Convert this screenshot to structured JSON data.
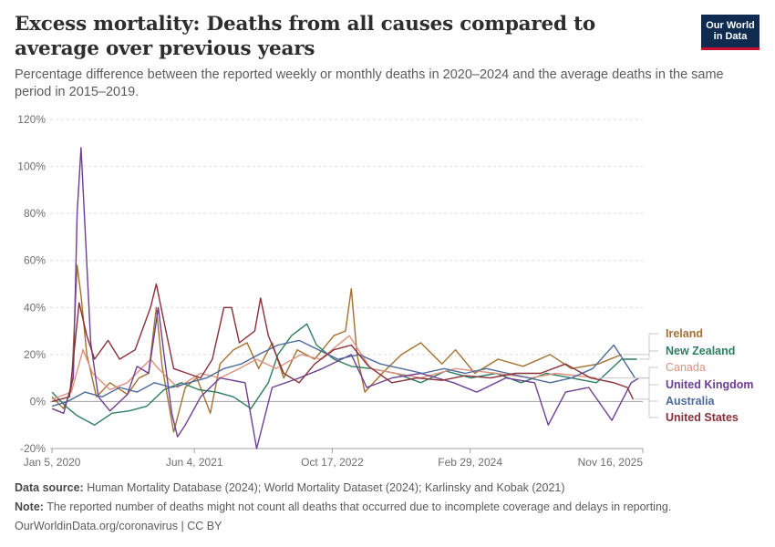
{
  "header": {
    "title": "Excess mortality: Deaths from all causes compared to average over previous years",
    "subtitle": "Percentage difference between the reported weekly or monthly deaths in 2020–2024 and the average deaths in the same period in 2015–2019.",
    "logo_line1": "Our World",
    "logo_line2": "in Data"
  },
  "footer": {
    "source_label": "Data source:",
    "source_text": "Human Mortality Database (2024); World Mortality Dataset (2024); Karlinsky and Kobak (2021)",
    "note_label": "Note:",
    "note_text": "The reported number of deaths might not count all deaths that occurred due to incomplete coverage and delays in reporting.",
    "credit": "OurWorldinData.org/coronavirus | CC BY"
  },
  "chart_data": {
    "type": "line",
    "y_unit": "%",
    "ylim": [
      -20,
      120
    ],
    "y_ticks": [
      -20,
      0,
      20,
      40,
      60,
      80,
      100,
      120
    ],
    "y_tick_labels": [
      "-20%",
      "0%",
      "20%",
      "40%",
      "60%",
      "80%",
      "100%",
      "120%"
    ],
    "x_ticks": [
      "2020-01-05",
      "2021-06-04",
      "2022-10-17",
      "2024-02-29",
      "2025-11-16"
    ],
    "x_tick_labels": [
      "Jan 5, 2020",
      "Jun 4, 2021",
      "Oct 17, 2022",
      "Feb 29, 2024",
      "Nov 16, 2025"
    ],
    "xlim": [
      "2019-12-29",
      "2025-11-16"
    ],
    "grid": "horizontal dashed",
    "legend": "right, labels at line ends",
    "series": [
      {
        "name": "Ireland",
        "color": "#a2712f",
        "points": [
          [
            "2020-01-05",
            2
          ],
          [
            "2020-02-15",
            -3
          ],
          [
            "2020-03-15",
            5
          ],
          [
            "2020-04-05",
            58
          ],
          [
            "2020-04-19",
            45
          ],
          [
            "2020-05-10",
            20
          ],
          [
            "2020-06-14",
            2
          ],
          [
            "2020-08-02",
            8
          ],
          [
            "2020-10-04",
            3
          ],
          [
            "2020-11-15",
            10
          ],
          [
            "2020-12-20",
            12
          ],
          [
            "2021-01-17",
            40
          ],
          [
            "2021-02-07",
            15
          ],
          [
            "2021-03-21",
            -13
          ],
          [
            "2021-05-02",
            6
          ],
          [
            "2021-06-13",
            10
          ],
          [
            "2021-08-01",
            -5
          ],
          [
            "2021-09-05",
            16
          ],
          [
            "2021-10-24",
            22
          ],
          [
            "2021-12-12",
            25
          ],
          [
            "2022-01-23",
            14
          ],
          [
            "2022-03-13",
            25
          ],
          [
            "2022-04-24",
            10
          ],
          [
            "2022-06-12",
            22
          ],
          [
            "2022-08-14",
            18
          ],
          [
            "2022-10-23",
            28
          ],
          [
            "2022-12-04",
            30
          ],
          [
            "2022-12-25",
            48
          ],
          [
            "2023-01-15",
            20
          ],
          [
            "2023-02-12",
            4
          ],
          [
            "2023-04-16",
            12
          ],
          [
            "2023-06-25",
            20
          ],
          [
            "2023-09-03",
            25
          ],
          [
            "2023-11-19",
            16
          ],
          [
            "2024-01-07",
            22
          ],
          [
            "2024-03-17",
            12
          ],
          [
            "2024-06-09",
            18
          ],
          [
            "2024-09-08",
            15
          ],
          [
            "2024-12-15",
            20
          ],
          [
            "2025-03-02",
            14
          ],
          [
            "2025-06-08",
            16
          ],
          [
            "2025-08-31",
            20
          ]
        ]
      },
      {
        "name": "New Zealand",
        "color": "#2d7e5e",
        "points": [
          [
            "2020-01-05",
            4
          ],
          [
            "2020-02-23",
            -2
          ],
          [
            "2020-04-05",
            -6
          ],
          [
            "2020-06-07",
            -10
          ],
          [
            "2020-08-09",
            -5
          ],
          [
            "2020-10-11",
            -4
          ],
          [
            "2020-12-13",
            -2
          ],
          [
            "2021-02-14",
            5
          ],
          [
            "2021-04-18",
            8
          ],
          [
            "2021-06-20",
            5
          ],
          [
            "2021-08-22",
            4
          ],
          [
            "2021-10-24",
            2
          ],
          [
            "2021-12-26",
            -3
          ],
          [
            "2022-02-27",
            8
          ],
          [
            "2022-04-03",
            20
          ],
          [
            "2022-05-22",
            28
          ],
          [
            "2022-07-17",
            33
          ],
          [
            "2022-08-21",
            24
          ],
          [
            "2022-10-23",
            18
          ],
          [
            "2022-12-25",
            15
          ],
          [
            "2023-03-05",
            14
          ],
          [
            "2023-06-04",
            12
          ],
          [
            "2023-09-03",
            8
          ],
          [
            "2023-12-03",
            13
          ],
          [
            "2024-03-03",
            10
          ],
          [
            "2024-06-02",
            12
          ],
          [
            "2024-09-01",
            8
          ],
          [
            "2024-12-01",
            12
          ],
          [
            "2025-03-02",
            10
          ],
          [
            "2025-06-01",
            8
          ],
          [
            "2025-08-31",
            18
          ],
          [
            "2025-10-26",
            18
          ]
        ]
      },
      {
        "name": "Canada",
        "color": "#e0917f",
        "points": [
          [
            "2020-01-05",
            1
          ],
          [
            "2020-03-15",
            4
          ],
          [
            "2020-04-26",
            22
          ],
          [
            "2020-05-31",
            12
          ],
          [
            "2020-08-02",
            5
          ],
          [
            "2020-10-04",
            8
          ],
          [
            "2020-12-27",
            18
          ],
          [
            "2021-01-24",
            14
          ],
          [
            "2021-04-04",
            6
          ],
          [
            "2021-06-27",
            12
          ],
          [
            "2021-09-05",
            10
          ],
          [
            "2021-11-14",
            14
          ],
          [
            "2022-01-16",
            18
          ],
          [
            "2022-03-27",
            14
          ],
          [
            "2022-06-26",
            20
          ],
          [
            "2022-09-04",
            18
          ],
          [
            "2022-12-18",
            28
          ],
          [
            "2023-03-05",
            14
          ],
          [
            "2023-06-04",
            12
          ],
          [
            "2023-09-03",
            10
          ],
          [
            "2024-01-07",
            14
          ],
          [
            "2024-06-02",
            12
          ],
          [
            "2024-10-06",
            10
          ],
          [
            "2025-01-05",
            12
          ],
          [
            "2025-06-01",
            10
          ]
        ]
      },
      {
        "name": "United Kingdom",
        "color": "#6d3e91",
        "points": [
          [
            "2020-01-05",
            -3
          ],
          [
            "2020-02-16",
            -5
          ],
          [
            "2020-03-22",
            10
          ],
          [
            "2020-04-05",
            80
          ],
          [
            "2020-04-19",
            108
          ],
          [
            "2020-05-03",
            75
          ],
          [
            "2020-05-24",
            25
          ],
          [
            "2020-06-21",
            2
          ],
          [
            "2020-08-02",
            -4
          ],
          [
            "2020-10-04",
            3
          ],
          [
            "2020-11-08",
            15
          ],
          [
            "2020-12-20",
            12
          ],
          [
            "2021-01-24",
            40
          ],
          [
            "2021-02-14",
            20
          ],
          [
            "2021-03-14",
            -5
          ],
          [
            "2021-04-04",
            -15
          ],
          [
            "2021-05-02",
            -10
          ],
          [
            "2021-06-27",
            2
          ],
          [
            "2021-09-05",
            10
          ],
          [
            "2021-12-05",
            8
          ],
          [
            "2022-01-16",
            -20
          ],
          [
            "2022-03-13",
            6
          ],
          [
            "2022-06-19",
            10
          ],
          [
            "2022-09-11",
            14
          ],
          [
            "2022-12-25",
            20
          ],
          [
            "2023-02-19",
            6
          ],
          [
            "2023-05-21",
            10
          ],
          [
            "2023-09-03",
            12
          ],
          [
            "2023-12-31",
            8
          ],
          [
            "2024-03-24",
            4
          ],
          [
            "2024-07-07",
            10
          ],
          [
            "2024-10-20",
            8
          ],
          [
            "2024-12-08",
            -10
          ],
          [
            "2025-02-09",
            4
          ],
          [
            "2025-05-04",
            6
          ],
          [
            "2025-07-27",
            -8
          ],
          [
            "2025-10-05",
            8
          ],
          [
            "2025-11-02",
            10
          ]
        ]
      },
      {
        "name": "Australia",
        "color": "#4c6a9c",
        "points": [
          [
            "2020-01-05",
            -2
          ],
          [
            "2020-03-01",
            0
          ],
          [
            "2020-05-03",
            4
          ],
          [
            "2020-07-05",
            2
          ],
          [
            "2020-09-06",
            6
          ],
          [
            "2020-11-08",
            4
          ],
          [
            "2021-01-10",
            8
          ],
          [
            "2021-03-14",
            6
          ],
          [
            "2021-05-16",
            8
          ],
          [
            "2021-07-18",
            10
          ],
          [
            "2021-09-19",
            14
          ],
          [
            "2021-11-21",
            16
          ],
          [
            "2022-01-23",
            20
          ],
          [
            "2022-04-03",
            24
          ],
          [
            "2022-06-19",
            26
          ],
          [
            "2022-08-28",
            22
          ],
          [
            "2022-11-06",
            18
          ],
          [
            "2023-01-22",
            20
          ],
          [
            "2023-04-09",
            16
          ],
          [
            "2023-06-25",
            14
          ],
          [
            "2023-09-10",
            12
          ],
          [
            "2023-11-26",
            14
          ],
          [
            "2024-02-11",
            12
          ],
          [
            "2024-04-28",
            14
          ],
          [
            "2024-07-14",
            12
          ],
          [
            "2024-09-29",
            10
          ],
          [
            "2024-12-15",
            8
          ],
          [
            "2025-03-02",
            10
          ],
          [
            "2025-05-18",
            14
          ],
          [
            "2025-08-03",
            24
          ],
          [
            "2025-10-19",
            10
          ]
        ]
      },
      {
        "name": "United States",
        "color": "#883039",
        "points": [
          [
            "2020-01-05",
            0
          ],
          [
            "2020-03-08",
            2
          ],
          [
            "2020-04-12",
            42
          ],
          [
            "2020-05-10",
            28
          ],
          [
            "2020-06-07",
            18
          ],
          [
            "2020-07-26",
            26
          ],
          [
            "2020-09-06",
            18
          ],
          [
            "2020-11-01",
            22
          ],
          [
            "2020-12-27",
            40
          ],
          [
            "2021-01-17",
            50
          ],
          [
            "2021-02-21",
            30
          ],
          [
            "2021-03-21",
            14
          ],
          [
            "2021-05-09",
            12
          ],
          [
            "2021-06-27",
            10
          ],
          [
            "2021-08-08",
            18
          ],
          [
            "2021-09-19",
            40
          ],
          [
            "2021-10-17",
            40
          ],
          [
            "2021-11-14",
            25
          ],
          [
            "2022-01-09",
            30
          ],
          [
            "2022-01-30",
            44
          ],
          [
            "2022-02-27",
            28
          ],
          [
            "2022-04-24",
            12
          ],
          [
            "2022-06-19",
            8
          ],
          [
            "2022-08-14",
            16
          ],
          [
            "2022-10-23",
            22
          ],
          [
            "2022-12-25",
            24
          ],
          [
            "2023-02-26",
            15
          ],
          [
            "2023-05-21",
            8
          ],
          [
            "2023-08-20",
            10
          ],
          [
            "2023-11-19",
            9
          ],
          [
            "2024-02-11",
            11
          ],
          [
            "2024-05-12",
            10
          ],
          [
            "2024-08-11",
            12
          ],
          [
            "2024-11-10",
            12
          ],
          [
            "2025-02-09",
            16
          ],
          [
            "2025-05-11",
            10
          ],
          [
            "2025-08-03",
            8
          ],
          [
            "2025-09-21",
            6
          ],
          [
            "2025-10-12",
            1
          ]
        ]
      }
    ]
  }
}
